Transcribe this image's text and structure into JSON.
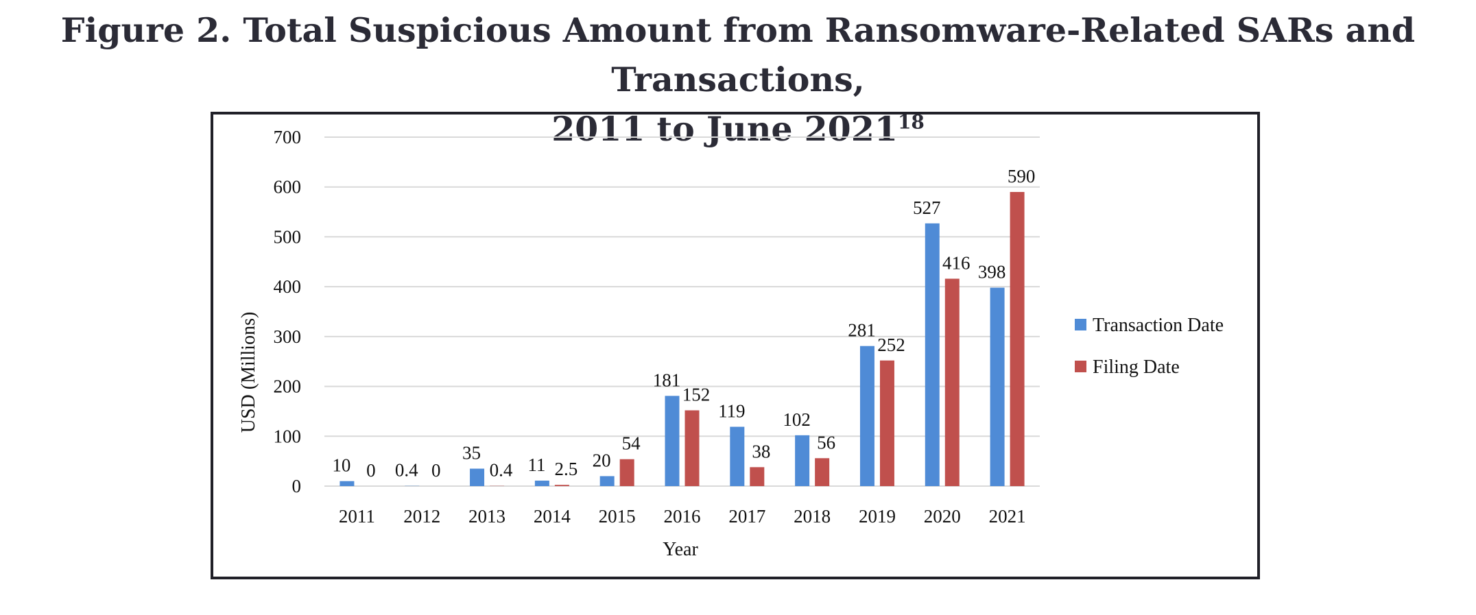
{
  "figure": {
    "title_line1": "Figure 2. Total Suspicious Amount from Ransomware-Related SARs and Transactions,",
    "title_line2": "2011 to June 2021",
    "footnote_ref": "18"
  },
  "chart_data": {
    "type": "bar",
    "categories": [
      "2011",
      "2012",
      "2013",
      "2014",
      "2015",
      "2016",
      "2017",
      "2018",
      "2019",
      "2020",
      "2021"
    ],
    "series": [
      {
        "name": "Transaction Date",
        "color": "#4f8bd6",
        "values": [
          10,
          0.4,
          35,
          11,
          20,
          181,
          119,
          102,
          281,
          527,
          398
        ],
        "labels": [
          "10",
          "0.4",
          "35",
          "11",
          "20",
          "181",
          "119",
          "102",
          "281",
          "527",
          "398"
        ]
      },
      {
        "name": "Filing Date",
        "color": "#c0504d",
        "values": [
          0,
          0,
          0.4,
          2.5,
          54,
          152,
          38,
          56,
          252,
          416,
          590
        ],
        "labels": [
          "0",
          "0",
          "0.4",
          "2.5",
          "54",
          "152",
          "38",
          "56",
          "252",
          "416",
          "590"
        ]
      }
    ],
    "xlabel": "Year",
    "ylabel": "USD (Millions)",
    "ylim": [
      0,
      700
    ],
    "yticks": [
      0,
      100,
      200,
      300,
      400,
      500,
      600,
      700
    ],
    "grid": true,
    "legend": "right"
  }
}
